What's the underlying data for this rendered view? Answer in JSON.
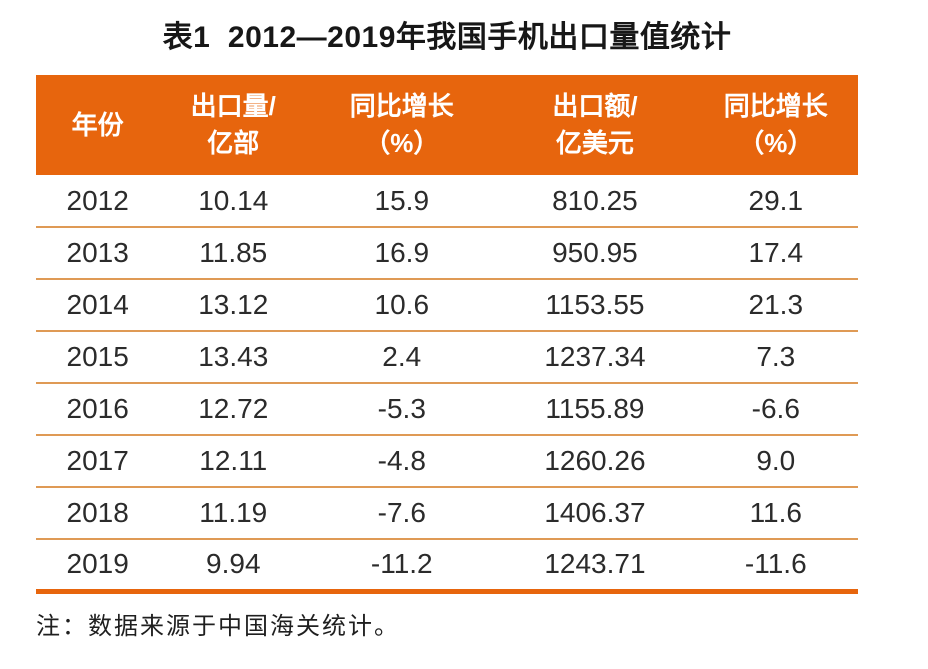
{
  "page": {
    "title": "表1  2012—2019年我国手机出口量值统计",
    "note": "注：数据来源于中国海关统计。"
  },
  "colors": {
    "header_bg": "#E7650D",
    "header_text": "#FFFFFF",
    "row_divider": "#DF9A55",
    "bottom_border": "#E7650D",
    "body_text": "#2B2B2B"
  },
  "table": {
    "headers": [
      {
        "lines": [
          "年份",
          ""
        ]
      },
      {
        "lines": [
          "出口量/",
          "亿部"
        ]
      },
      {
        "lines": [
          "同比增长",
          "（%）"
        ]
      },
      {
        "lines": [
          "出口额/",
          "亿美元"
        ]
      },
      {
        "lines": [
          "同比增长",
          "（%）"
        ]
      }
    ],
    "rows": [
      [
        "2012",
        "10.14",
        "15.9",
        "810.25",
        "29.1"
      ],
      [
        "2013",
        "11.85",
        "16.9",
        "950.95",
        "17.4"
      ],
      [
        "2014",
        "13.12",
        "10.6",
        "1153.55",
        "21.3"
      ],
      [
        "2015",
        "13.43",
        "2.4",
        "1237.34",
        "7.3"
      ],
      [
        "2016",
        "12.72",
        "-5.3",
        "1155.89",
        "-6.6"
      ],
      [
        "2017",
        "12.11",
        "-4.8",
        "1260.26",
        "9.0"
      ],
      [
        "2018",
        "11.19",
        "-7.6",
        "1406.37",
        "11.6"
      ],
      [
        "2019",
        "9.94",
        "-11.2",
        "1243.71",
        "-11.6"
      ]
    ]
  },
  "chart_data": {
    "type": "table",
    "title": "表1 2012—2019年我国手机出口量值统计",
    "columns": [
      "年份",
      "出口量/亿部",
      "同比增长（%）",
      "出口额/亿美元",
      "同比增长（%）"
    ],
    "categories": [
      "2012",
      "2013",
      "2014",
      "2015",
      "2016",
      "2017",
      "2018",
      "2019"
    ],
    "series": [
      {
        "name": "出口量/亿部",
        "values": [
          10.14,
          11.85,
          13.12,
          13.43,
          12.72,
          12.11,
          11.19,
          9.94
        ]
      },
      {
        "name": "出口量同比增长（%）",
        "values": [
          15.9,
          16.9,
          10.6,
          2.4,
          -5.3,
          -4.8,
          -7.6,
          -11.2
        ]
      },
      {
        "name": "出口额/亿美元",
        "values": [
          810.25,
          950.95,
          1153.55,
          1237.34,
          1155.89,
          1260.26,
          1406.37,
          1243.71
        ]
      },
      {
        "name": "出口额同比增长（%）",
        "values": [
          29.1,
          17.4,
          21.3,
          7.3,
          -6.6,
          9.0,
          11.6,
          -11.6
        ]
      }
    ],
    "note": "注：数据来源于中国海关统计。"
  }
}
